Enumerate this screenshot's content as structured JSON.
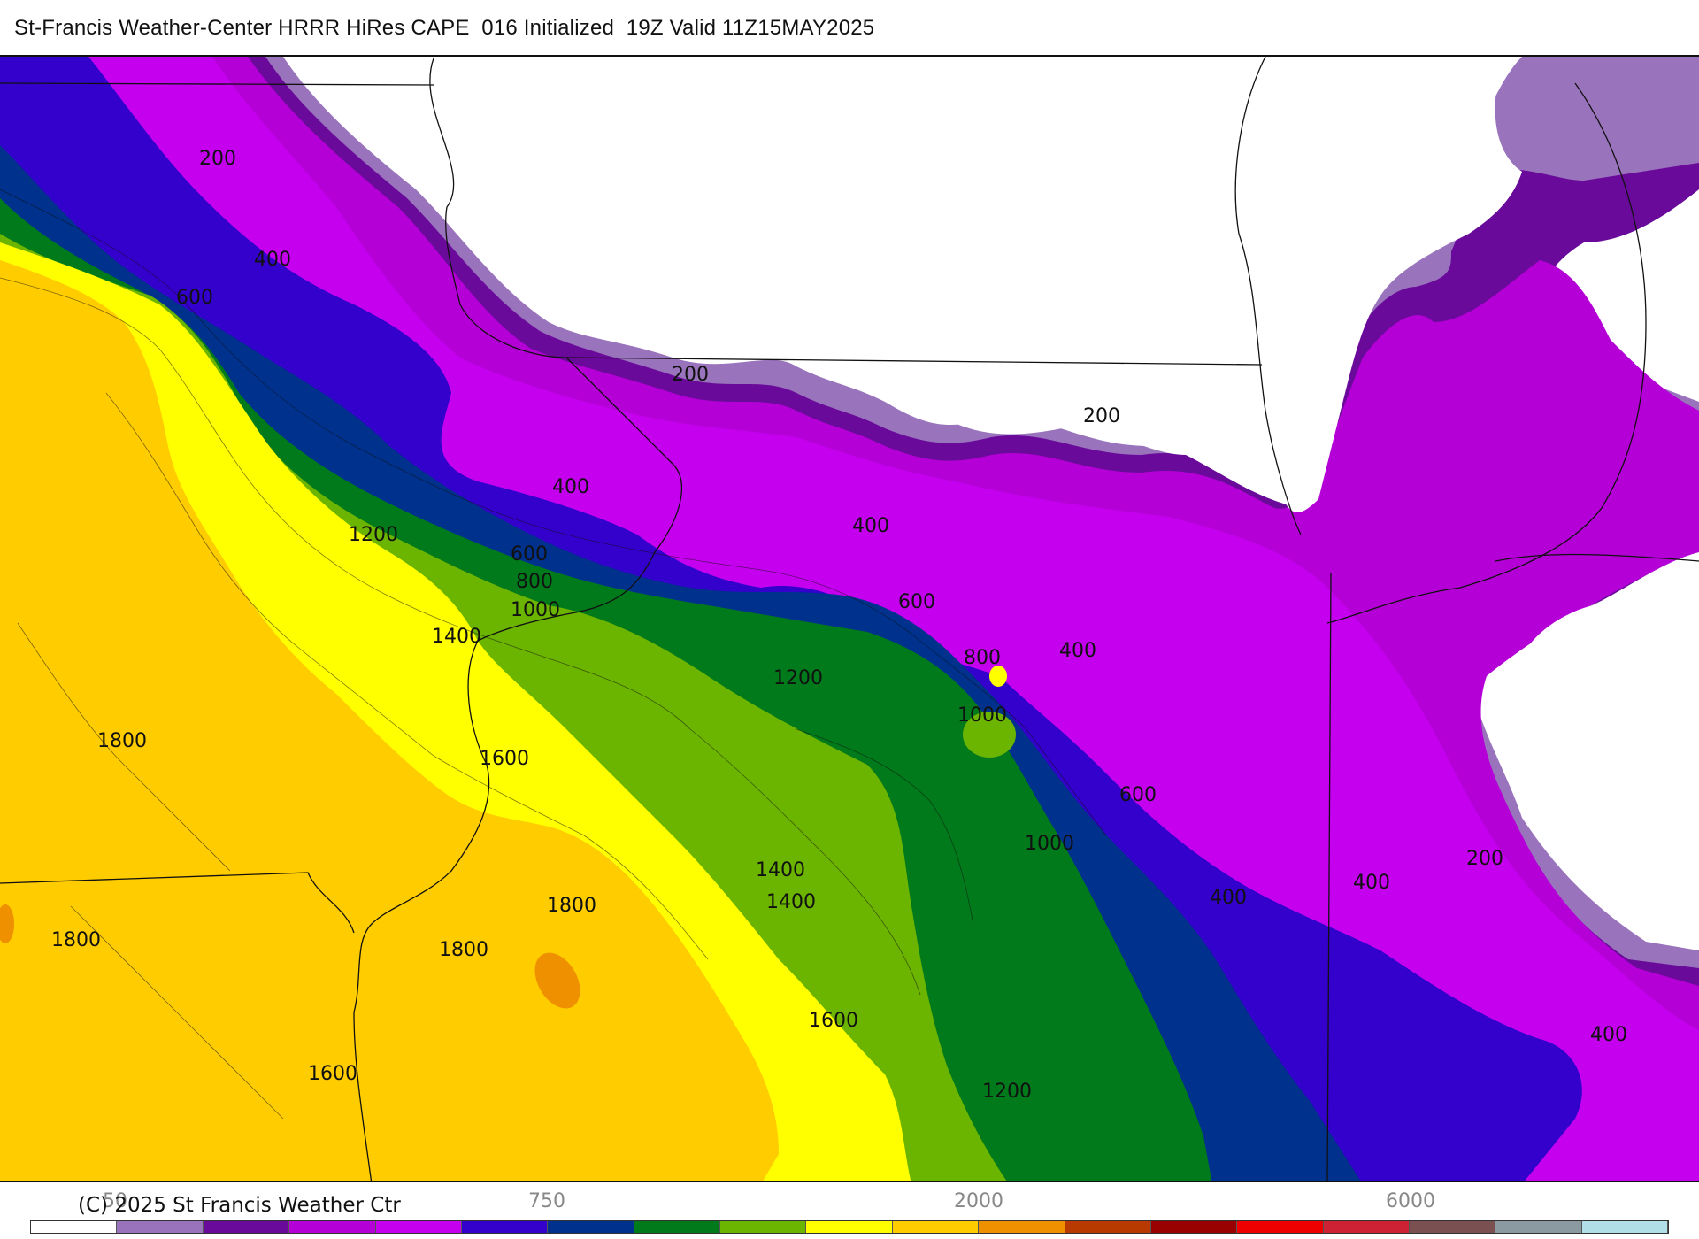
{
  "header": {
    "title": "St-Francis Weather-Center HRRR HiRes CAPE  016 Initialized  19Z Valid 11Z15MAY2025"
  },
  "map": {
    "contour_labels": [
      "200",
      "400",
      "600",
      "200",
      "400",
      "1200",
      "600",
      "800",
      "1000",
      "400",
      "600",
      "200",
      "1400",
      "800",
      "400",
      "1200",
      "1000",
      "1800",
      "1600",
      "600",
      "1000",
      "1800",
      "1400",
      "1400",
      "400",
      "400",
      "200",
      "1800",
      "1800",
      "1600",
      "400",
      "1200",
      "1600"
    ],
    "colors": {
      "c0": "#ffffff",
      "c1": "#9a73bd",
      "c2": "#6a0a9a",
      "c3": "#b400d6",
      "c4": "#c400ee",
      "c5": "#3300cc",
      "c6": "#00318c",
      "c7": "#007a1a",
      "c8": "#6bb400",
      "c9": "#ffff00",
      "c10": "#ffcc00",
      "c11": "#ee9000"
    }
  },
  "footer": {
    "copyright": "(C) 2025 St Francis Weather Ctr",
    "ticks": [
      "50",
      "750",
      "2000",
      "6000"
    ]
  },
  "colorbar": {
    "colors": [
      "#ffffff",
      "#9a73bd",
      "#6a0a9a",
      "#b400d6",
      "#c400ee",
      "#3300cc",
      "#00318c",
      "#007a1a",
      "#6bb400",
      "#ffff00",
      "#ffcc00",
      "#ee9000",
      "#b83a00",
      "#990000",
      "#ee0000",
      "#cc2233",
      "#7a5050",
      "#8a9aa0",
      "#b0dfe8"
    ]
  }
}
